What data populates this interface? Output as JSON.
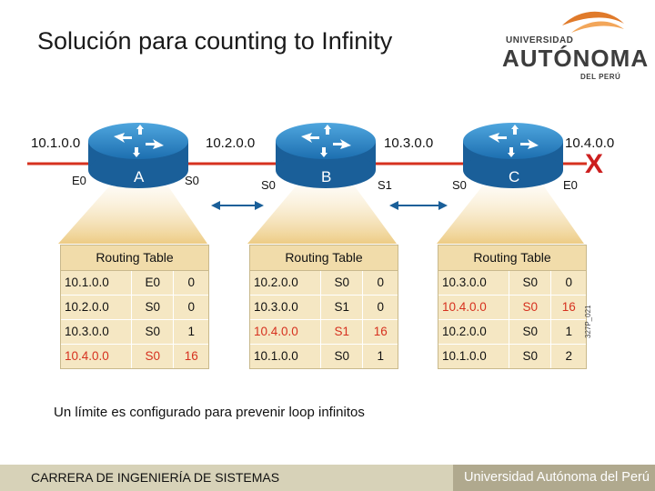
{
  "title": "Solución para counting to Infinity",
  "logo": {
    "top": "UNIVERSIDAD",
    "main": "AUTÓNOMA",
    "sub": "DEL PERÚ"
  },
  "diagram": {
    "networks": [
      "10.1.0.0",
      "10.2.0.0",
      "10.3.0.0",
      "10.4.0.0"
    ],
    "routers": [
      {
        "name": "A",
        "left_if": "E0",
        "right_if": "S0"
      },
      {
        "name": "B",
        "left_if": "S0",
        "right_if": "S1"
      },
      {
        "name": "C",
        "left_if": "S0",
        "right_if": "E0"
      }
    ],
    "failure_mark": "X",
    "figure_id": "327P_021"
  },
  "tables": [
    {
      "header": "Routing Table",
      "rows": [
        {
          "net": "10.1.0.0",
          "if": "E0",
          "hop": "0",
          "highlight": false
        },
        {
          "net": "10.2.0.0",
          "if": "S0",
          "hop": "0",
          "highlight": false
        },
        {
          "net": "10.3.0.0",
          "if": "S0",
          "hop": "1",
          "highlight": false
        },
        {
          "net": "10.4.0.0",
          "if": "S0",
          "hop": "16",
          "highlight": true
        }
      ]
    },
    {
      "header": "Routing Table",
      "rows": [
        {
          "net": "10.2.0.0",
          "if": "S0",
          "hop": "0",
          "highlight": false
        },
        {
          "net": "10.3.0.0",
          "if": "S1",
          "hop": "0",
          "highlight": false
        },
        {
          "net": "10.4.0.0",
          "if": "S1",
          "hop": "16",
          "highlight": true
        },
        {
          "net": "10.1.0.0",
          "if": "S0",
          "hop": "1",
          "highlight": false
        }
      ]
    },
    {
      "header": "Routing Table",
      "rows": [
        {
          "net": "10.3.0.0",
          "if": "S0",
          "hop": "0",
          "highlight": false
        },
        {
          "net": "10.4.0.0",
          "if": "S0",
          "hop": "16",
          "highlight": true
        },
        {
          "net": "10.2.0.0",
          "if": "S0",
          "hop": "1",
          "highlight": false
        },
        {
          "net": "10.1.0.0",
          "if": "S0",
          "hop": "2",
          "highlight": false
        }
      ]
    }
  ],
  "caption": "Un límite es configurado para prevenir loop infinitos",
  "footer": {
    "left": "CARRERA DE INGENIERÍA DE SISTEMAS",
    "right": "Universidad Autónoma del Perú"
  },
  "colors": {
    "accent_red": "#d6311f",
    "router_blue": "#1e73b8",
    "table_fill": "#f5e7c3",
    "footer": "#b0a98e"
  }
}
